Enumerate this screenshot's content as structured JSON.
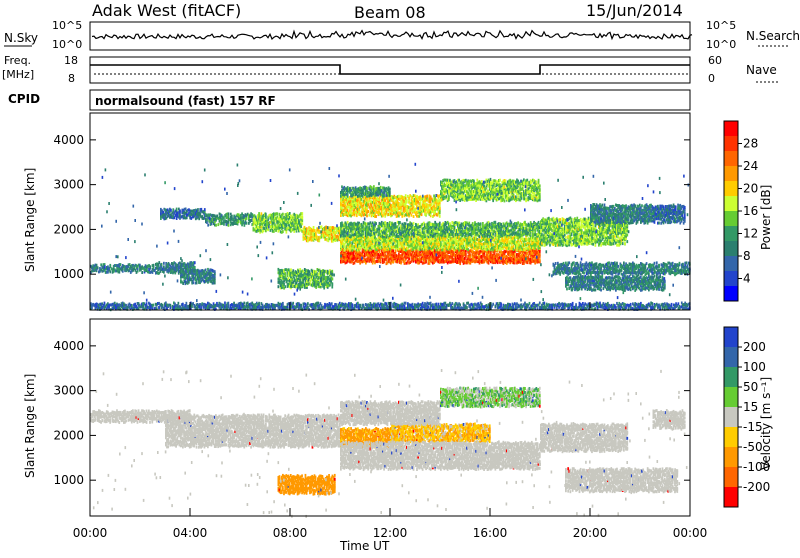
{
  "header": {
    "radar_title": "Adak West (fitACF)",
    "beam_title": "Beam 08",
    "date_title": "15/Jun/2014"
  },
  "sky_panel": {
    "left_label": "N.Sky",
    "right_label": "N.Search",
    "left_ticks": [
      "10^5",
      "10^0"
    ],
    "right_ticks": [
      "10^5",
      "10^0"
    ]
  },
  "freq_panel": {
    "left_label_1": "Freq.",
    "left_label_2": "[MHz]",
    "right_label": "Nave",
    "left_ticks": [
      "18",
      "8"
    ],
    "right_ticks": [
      "60",
      "0"
    ],
    "freq_steps": [
      {
        "from": 0,
        "to": 10,
        "level": "high"
      },
      {
        "from": 10,
        "to": 18,
        "level": "low"
      },
      {
        "from": 18,
        "to": 24,
        "level": "high"
      }
    ]
  },
  "cpid_panel": {
    "label": "CPID",
    "program": "normalsound (fast) 157 RF"
  },
  "chart_data": [
    {
      "type": "heatmap",
      "name": "power",
      "ylabel": "Slant Range [km]",
      "ylim": [
        200,
        4600
      ],
      "yticks": [
        "4000",
        "3000",
        "2000",
        "1000"
      ],
      "colorbar_label": "Power [dB]",
      "colorbar_ticks": [
        "28",
        "24",
        "20",
        "16",
        "12",
        "8",
        "4"
      ],
      "colorbar_colors": [
        "#ff0000",
        "#ff3300",
        "#ff6600",
        "#ff9900",
        "#ffcc00",
        "#ccff33",
        "#66cc33",
        "#339966",
        "#2b7f6f",
        "#3366aa",
        "#2244cc",
        "#0000ff"
      ],
      "bands": [
        {
          "t0": 0.0,
          "t1": 2.6,
          "r0": 1100,
          "r1": 1260,
          "level": 8
        },
        {
          "t0": 2.6,
          "t1": 4.2,
          "r0": 1080,
          "r1": 1300,
          "level": 8
        },
        {
          "t0": 3.6,
          "t1": 5.0,
          "r0": 850,
          "r1": 1150,
          "level": 8
        },
        {
          "t0": 2.8,
          "t1": 4.6,
          "r0": 2300,
          "r1": 2500,
          "level": 6
        },
        {
          "t0": 4.6,
          "t1": 6.5,
          "r0": 2150,
          "r1": 2400,
          "level": 10
        },
        {
          "t0": 6.5,
          "t1": 8.5,
          "r0": 2000,
          "r1": 2400,
          "level": 14
        },
        {
          "t0": 8.5,
          "t1": 10.0,
          "r0": 1800,
          "r1": 2100,
          "level": 18
        },
        {
          "t0": 7.5,
          "t1": 9.7,
          "r0": 750,
          "r1": 1150,
          "level": 12
        },
        {
          "t0": 10.0,
          "t1": 18.0,
          "r0": 1300,
          "r1": 1600,
          "level": 26
        },
        {
          "t0": 10.0,
          "t1": 18.0,
          "r0": 1600,
          "r1": 1900,
          "level": 16
        },
        {
          "t0": 10.0,
          "t1": 18.0,
          "r0": 1900,
          "r1": 2200,
          "level": 12
        },
        {
          "t0": 10.0,
          "t1": 14.0,
          "r0": 2350,
          "r1": 2800,
          "level": 18
        },
        {
          "t0": 14.0,
          "t1": 18.0,
          "r0": 2700,
          "r1": 3150,
          "level": 14
        },
        {
          "t0": 10.0,
          "t1": 12.0,
          "r0": 2800,
          "r1": 3000,
          "level": 10
        },
        {
          "t0": 18.0,
          "t1": 21.5,
          "r0": 1700,
          "r1": 2300,
          "level": 14
        },
        {
          "t0": 20.0,
          "t1": 22.5,
          "r0": 2200,
          "r1": 2600,
          "level": 8
        },
        {
          "t0": 18.5,
          "t1": 24.0,
          "r0": 1050,
          "r1": 1300,
          "level": 8
        },
        {
          "t0": 19.0,
          "t1": 23.0,
          "r0": 700,
          "r1": 1000,
          "level": 8
        },
        {
          "t0": 22.5,
          "t1": 23.8,
          "r0": 2200,
          "r1": 2600,
          "level": 6
        },
        {
          "t0": 0.0,
          "t1": 24.0,
          "r0": 200,
          "r1": 400,
          "level": 6
        }
      ]
    },
    {
      "type": "heatmap",
      "name": "velocity",
      "ylabel": "Slant Range [km]",
      "ylim": [
        200,
        4600
      ],
      "yticks": [
        "4000",
        "3000",
        "2000",
        "1000"
      ],
      "xlabel": "Time UT",
      "xticks": [
        "00:00",
        "04:00",
        "08:00",
        "12:00",
        "16:00",
        "20:00",
        "00:00"
      ],
      "colorbar_label": "Velocity [m s⁻¹]",
      "colorbar_ticks": [
        "200",
        "100",
        "50",
        "15",
        "-15",
        "-50",
        "-100",
        "-200"
      ],
      "colorbar_colors": [
        "#2244cc",
        "#3366aa",
        "#339966",
        "#66cc33",
        "#c8c8c0",
        "#ffcc00",
        "#ff9900",
        "#ff6600",
        "#ff0000"
      ],
      "bands": [
        {
          "t0": 0.0,
          "t1": 4.0,
          "r0": 2350,
          "r1": 2600,
          "vel": 0
        },
        {
          "t0": 3.0,
          "t1": 10.0,
          "r0": 1800,
          "r1": 2500,
          "vel": 0
        },
        {
          "t0": 7.5,
          "t1": 9.8,
          "r0": 750,
          "r1": 1150,
          "vel": -60
        },
        {
          "t0": 10.0,
          "t1": 12.5,
          "r0": 1800,
          "r1": 2200,
          "vel": -40
        },
        {
          "t0": 12.0,
          "t1": 16.0,
          "r0": 1900,
          "r1": 2300,
          "vel": -25
        },
        {
          "t0": 10.0,
          "t1": 18.0,
          "r0": 1300,
          "r1": 1900,
          "vel": 0
        },
        {
          "t0": 10.0,
          "t1": 14.0,
          "r0": 2300,
          "r1": 2800,
          "vel": 0
        },
        {
          "t0": 14.0,
          "t1": 18.0,
          "r0": 2700,
          "r1": 3100,
          "vel": 20
        },
        {
          "t0": 18.0,
          "t1": 21.5,
          "r0": 1700,
          "r1": 2300,
          "vel": 0
        },
        {
          "t0": 19.0,
          "t1": 23.5,
          "r0": 800,
          "r1": 1300,
          "vel": 0
        },
        {
          "t0": 22.5,
          "t1": 23.8,
          "r0": 2200,
          "r1": 2600,
          "vel": 0
        }
      ]
    }
  ]
}
